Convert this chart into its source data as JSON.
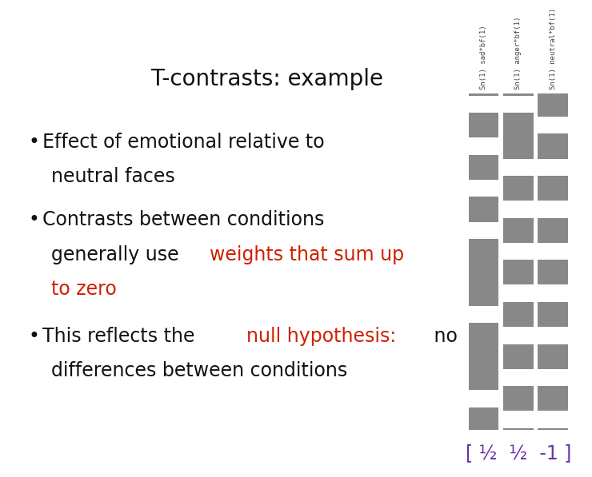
{
  "title": "T-contrasts: example",
  "background_color": "#ffffff",
  "title_fontsize": 20,
  "bullet_fontsize": 17,
  "red_color": "#cc2200",
  "black_color": "#111111",
  "purple_color": "#6633aa",
  "gray_color": "#777777",
  "white_color": "#ffffff",
  "grid_bg": "#888888",
  "col_label_fontsize": 6.5,
  "contrast_label_fontsize": 17,
  "contrast_label": "[ ½  ½  -1 ]",
  "col_labels": [
    "Sn(1) sad*bf(1)",
    "Sn(1) anger*bf(1)",
    "Sn(1) neutral*bf(1)"
  ],
  "white_rows_col0": [
    0,
    2,
    4,
    6,
    10,
    14
  ],
  "white_rows_col1": [
    0,
    3,
    5,
    7,
    9,
    11,
    13,
    15
  ],
  "white_rows_col2": [
    1,
    3,
    5,
    7,
    9,
    11,
    13,
    15
  ],
  "num_rows": 16
}
